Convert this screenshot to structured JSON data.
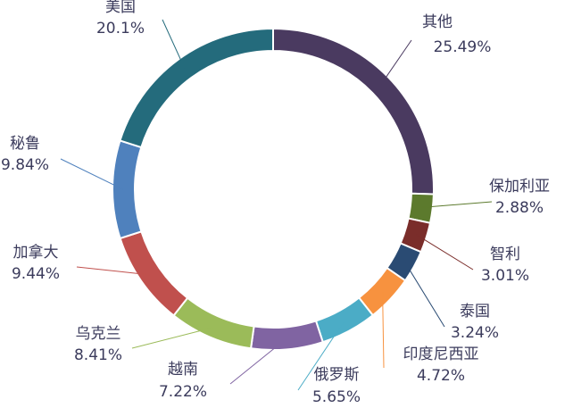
{
  "chart_data": {
    "type": "pie",
    "variant": "donut",
    "title": "",
    "legend": "none",
    "slices": [
      {
        "name": "其他",
        "value": 25.49,
        "label": "25.49%",
        "color": "#4a3a60"
      },
      {
        "name": "保加利亚",
        "value": 2.88,
        "label": "2.88%",
        "color": "#5c7a2d"
      },
      {
        "name": "智利",
        "value": 3.01,
        "label": "3.01%",
        "color": "#7a2d2a"
      },
      {
        "name": "泰国",
        "value": 3.24,
        "label": "3.24%",
        "color": "#2a4b73"
      },
      {
        "name": "印度尼西亚",
        "value": 4.72,
        "label": "4.72%",
        "color": "#f7923f"
      },
      {
        "name": "俄罗斯",
        "value": 5.65,
        "label": "5.65%",
        "color": "#4bacc6"
      },
      {
        "name": "越南",
        "value": 7.22,
        "label": "7.22%",
        "color": "#8064a2"
      },
      {
        "name": "乌克兰",
        "value": 8.41,
        "label": "8.41%",
        "color": "#9bbb59"
      },
      {
        "name": "加拿大",
        "value": 9.44,
        "label": "9.44%",
        "color": "#c0504d"
      },
      {
        "name": "秘鲁",
        "value": 9.84,
        "label": "9.84%",
        "color": "#4f81bd"
      },
      {
        "name": "美国",
        "value": 20.1,
        "label": "20.1%",
        "color": "#246b7c"
      }
    ]
  }
}
